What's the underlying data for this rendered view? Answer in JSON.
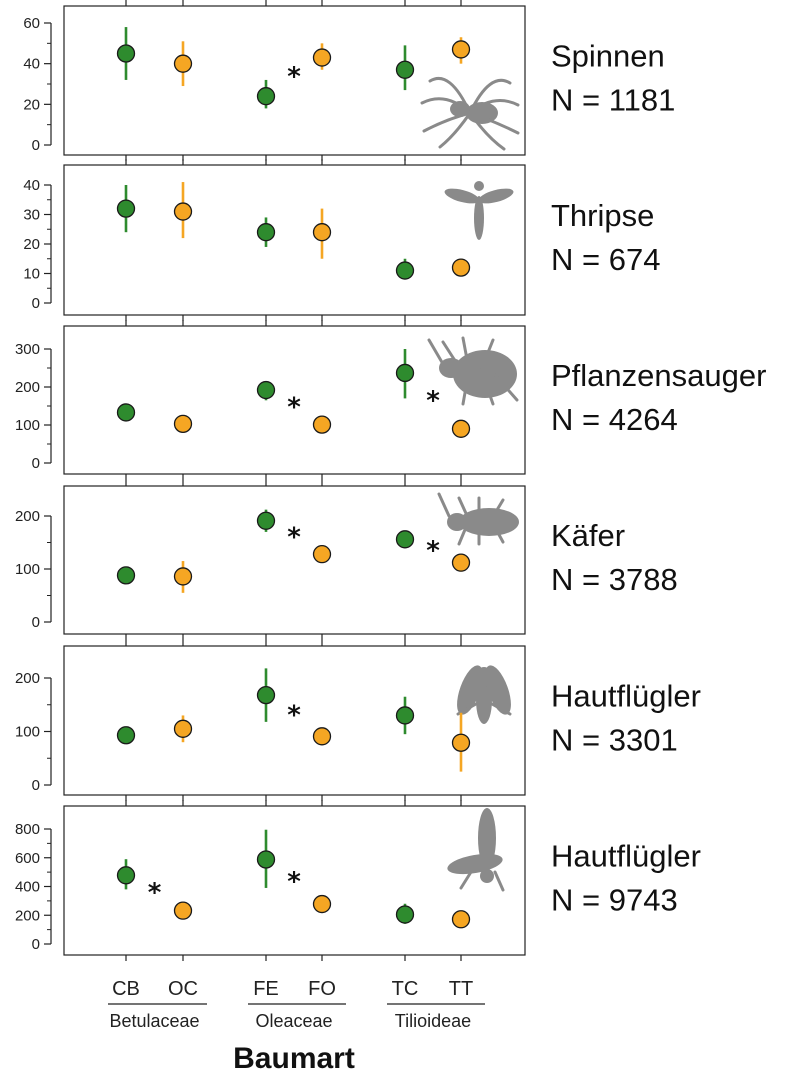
{
  "chart_data": {
    "type": "scatter",
    "xlabel": "Baumart",
    "categories": [
      "CB",
      "OC",
      "FE",
      "FO",
      "TC",
      "TT"
    ],
    "groups": [
      {
        "label": "Betulaceae",
        "categories": [
          "CB",
          "OC"
        ]
      },
      {
        "label": "Oleaceae",
        "categories": [
          "FE",
          "FO"
        ]
      },
      {
        "label": "Tilioideae",
        "categories": [
          "TC",
          "TT"
        ]
      }
    ],
    "colors": {
      "native": "#2e8b2e",
      "nonnative": "#f5a623"
    },
    "panels": [
      {
        "name": "Spinnen",
        "n_label": "N = 1181",
        "icon": "spider-icon",
        "ylim": [
          0,
          60
        ],
        "yticks": [
          0,
          20,
          40,
          60
        ],
        "values": [
          45,
          40,
          24,
          43,
          37,
          47
        ],
        "ci_low": [
          32,
          29,
          18,
          37,
          27,
          40
        ],
        "ci_high": [
          58,
          51,
          32,
          50,
          49,
          53
        ],
        "significant_pairs": [
          "FE-FO"
        ]
      },
      {
        "name": "Thripse",
        "n_label": "N = 674",
        "icon": "thrips-icon",
        "ylim": [
          0,
          40
        ],
        "yticks": [
          0,
          10,
          20,
          30,
          40
        ],
        "values": [
          32,
          31,
          24,
          24,
          11,
          12
        ],
        "ci_low": [
          24,
          22,
          19,
          15,
          8,
          9
        ],
        "ci_high": [
          40,
          41,
          29,
          32,
          15,
          15
        ],
        "significant_pairs": []
      },
      {
        "name": "Pflanzensauger",
        "n_label": "N = 4264",
        "icon": "bug-icon",
        "ylim": [
          0,
          300
        ],
        "yticks": [
          0,
          100,
          200,
          300
        ],
        "values": [
          133,
          103,
          192,
          101,
          237,
          90
        ],
        "ci_low": [
          118,
          86,
          165,
          85,
          170,
          74
        ],
        "ci_high": [
          148,
          118,
          215,
          116,
          300,
          103
        ],
        "significant_pairs": [
          "FE-FO",
          "TC-TT"
        ]
      },
      {
        "name": "Käfer",
        "n_label": "N = 3788",
        "icon": "beetle-icon",
        "ylim": [
          0,
          200
        ],
        "yticks": [
          0,
          100,
          200
        ],
        "values": [
          88,
          86,
          191,
          128,
          156,
          112
        ],
        "ci_low": [
          80,
          55,
          170,
          115,
          145,
          95
        ],
        "ci_high": [
          96,
          115,
          212,
          140,
          167,
          128
        ],
        "significant_pairs": [
          "FE-FO",
          "TC-TT"
        ]
      },
      {
        "name": "Hautflügler",
        "n_label": "N = 3301",
        "icon": "fly-icon",
        "ylim": [
          0,
          200
        ],
        "yticks": [
          0,
          100,
          200
        ],
        "values": [
          93,
          105,
          168,
          91,
          130,
          79
        ],
        "ci_low": [
          85,
          80,
          118,
          80,
          95,
          25
        ],
        "ci_high": [
          101,
          130,
          218,
          102,
          165,
          135
        ],
        "significant_pairs": [
          "FE-FO"
        ]
      },
      {
        "name": "Hautflügler",
        "n_label": "N = 9743",
        "icon": "wasp-icon",
        "ylim": [
          0,
          800
        ],
        "yticks": [
          0,
          200,
          400,
          600,
          800
        ],
        "values": [
          478,
          232,
          588,
          278,
          205,
          172
        ],
        "ci_low": [
          380,
          200,
          390,
          245,
          140,
          140
        ],
        "ci_high": [
          590,
          265,
          795,
          310,
          280,
          205
        ],
        "significant_pairs": [
          "CB-OC",
          "FE-FO"
        ]
      }
    ]
  }
}
